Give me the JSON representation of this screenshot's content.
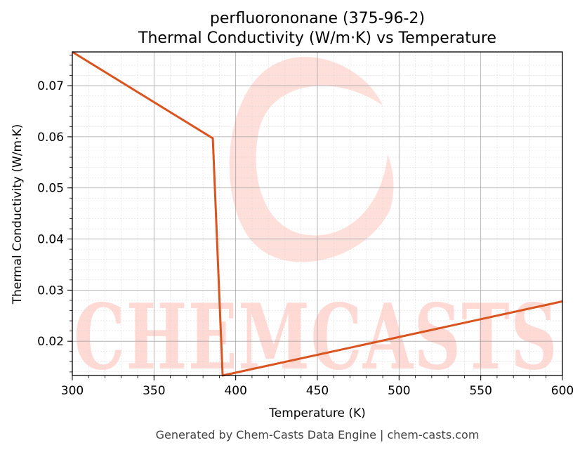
{
  "chart_data": {
    "type": "line",
    "title": "perfluorononane (375-96-2)",
    "subtitle": "Thermal Conductivity (W/m·K) vs Temperature",
    "xlabel": "Temperature (K)",
    "ylabel": "Thermal Conductivity (W/m·K)",
    "xlim": [
      300,
      600
    ],
    "ylim": [
      0.0133,
      0.0766
    ],
    "xticks": [
      300,
      350,
      400,
      450,
      500,
      550,
      600
    ],
    "yticks": [
      0.02,
      0.03,
      0.04,
      0.05,
      0.06,
      0.07
    ],
    "grid": true,
    "series": [
      {
        "color": "#d9541e",
        "x": [
          300,
          386,
          392,
          600
        ],
        "y": [
          0.0766,
          0.0597,
          0.0133,
          0.0278
        ]
      }
    ]
  },
  "watermark": {
    "text": "CHEMCASTS",
    "color": "#ffd9d4"
  },
  "footer": "Generated by Chem-Casts Data Engine | chem-casts.com"
}
